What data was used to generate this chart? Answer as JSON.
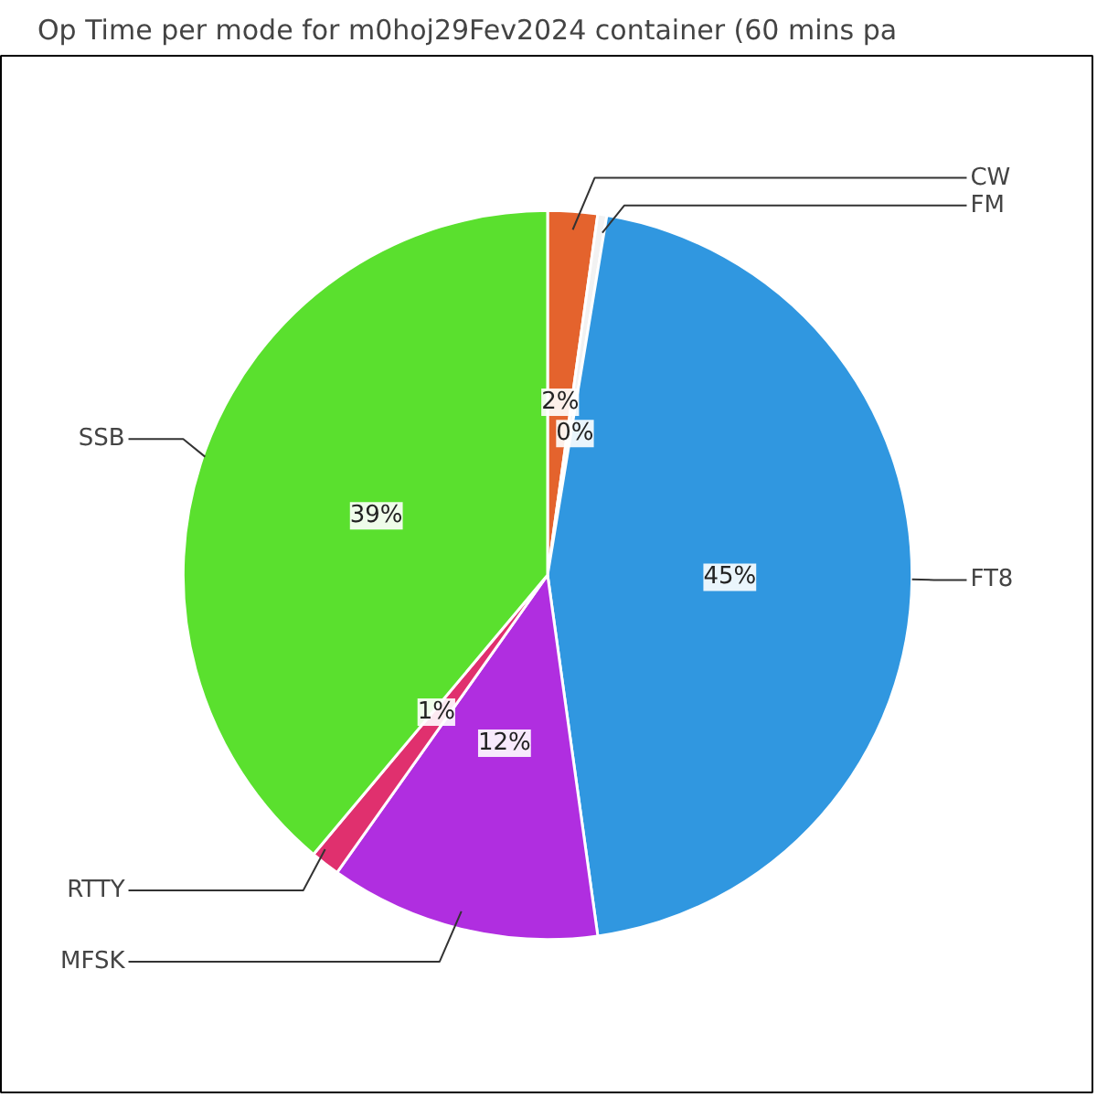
{
  "chart_data": {
    "type": "pie",
    "title": "Op Time per mode for m0hoj29Fev2024 container (60 mins pa",
    "categories": [
      "CW",
      "FM",
      "FT8",
      "MFSK",
      "RTTY",
      "SSB"
    ],
    "values": [
      2.2,
      0.4,
      45.2,
      12.0,
      1.3,
      38.9
    ],
    "value_labels": [
      "2%",
      "0%",
      "45%",
      "12%",
      "1%",
      "39%"
    ],
    "colors": [
      "#e4632d",
      "#f2f2f2",
      "#3097e0",
      "#b02ee0",
      "#e0306e",
      "#5ae02e"
    ]
  }
}
